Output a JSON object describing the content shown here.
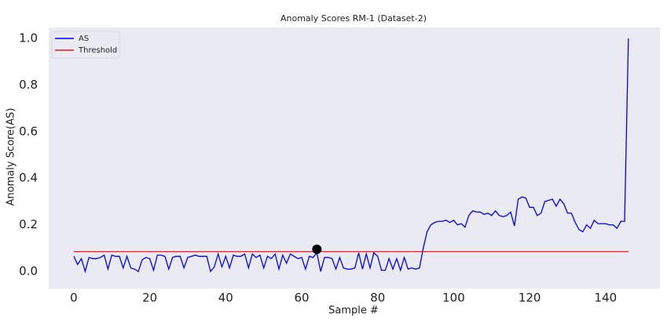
{
  "chart_data": {
    "type": "line",
    "title": "Anomaly Scores RM-1 (Dataset-2)",
    "x_label": "Sample #",
    "y_label": "Anomaly Score(AS)",
    "xlim": [
      -6.6,
      154.3
    ],
    "ylim": [
      -0.074,
      1.047
    ],
    "xticks": [
      0,
      20,
      40,
      60,
      80,
      100,
      120,
      140
    ],
    "yticks": [
      {
        "value": 0,
        "label": "0.0"
      },
      0.2,
      0.4,
      0.6,
      0.8,
      {
        "value": 1,
        "label": "1.0"
      }
    ],
    "grid": false,
    "legend": "upper left",
    "series": [
      {
        "name": "AS",
        "color": "#0000ff",
        "x": [
          0,
          1,
          2,
          3,
          4,
          5,
          6,
          7,
          8,
          9,
          10,
          11,
          12,
          13,
          14,
          15,
          16,
          17,
          18,
          19,
          20,
          21,
          22,
          23,
          24,
          25,
          26,
          27,
          28,
          29,
          30,
          31,
          32,
          33,
          34,
          35,
          36,
          37,
          38,
          39,
          40,
          41,
          42,
          43,
          44,
          45,
          46,
          47,
          48,
          49,
          50,
          51,
          52,
          53,
          54,
          55,
          56,
          57,
          58,
          59,
          60,
          61,
          62,
          63,
          64,
          65,
          66,
          67,
          68,
          69,
          70,
          71,
          72,
          73,
          74,
          75,
          76,
          77,
          78,
          79,
          80,
          81,
          82,
          83,
          84,
          85,
          86,
          87,
          88,
          89,
          90,
          91,
          92,
          93,
          94,
          95,
          96,
          97,
          98,
          99,
          100,
          101,
          102,
          103,
          104,
          105,
          106,
          107,
          108,
          109,
          110,
          111,
          112,
          113,
          114,
          115,
          116,
          117,
          118,
          119,
          120,
          121,
          122,
          123,
          124,
          125,
          126,
          127,
          128,
          129,
          130,
          131,
          132,
          133,
          134,
          135,
          136,
          137,
          138,
          139,
          140,
          141,
          142,
          143,
          144,
          145,
          146
        ],
        "values": [
          0.065,
          0.03,
          0.055,
          0.0,
          0.06,
          0.055,
          0.055,
          0.06,
          0.07,
          0.01,
          0.07,
          0.065,
          0.065,
          0.015,
          0.065,
          0.015,
          0.01,
          0.0,
          0.05,
          0.06,
          0.055,
          0.005,
          0.07,
          0.07,
          0.065,
          0.01,
          0.06,
          0.065,
          0.065,
          0.015,
          0.06,
          0.065,
          0.07,
          0.065,
          0.065,
          0.065,
          0.0,
          0.02,
          0.075,
          0.02,
          0.065,
          0.015,
          0.07,
          0.065,
          0.065,
          0.075,
          0.015,
          0.075,
          0.06,
          0.07,
          0.015,
          0.065,
          0.055,
          0.075,
          0.01,
          0.07,
          0.035,
          0.075,
          0.065,
          0.055,
          0.06,
          0.01,
          0.065,
          0.06,
          0.08,
          0.0,
          0.06,
          0.06,
          0.055,
          0.01,
          0.06,
          0.015,
          0.01,
          0.01,
          0.015,
          0.08,
          0.01,
          0.075,
          0.015,
          0.08,
          0.065,
          0.005,
          0.005,
          0.055,
          0.01,
          0.055,
          0.005,
          0.06,
          0.01,
          0.015,
          0.01,
          0.015,
          0.1,
          0.17,
          0.2,
          0.21,
          0.215,
          0.215,
          0.22,
          0.21,
          0.22,
          0.2,
          0.205,
          0.19,
          0.24,
          0.26,
          0.255,
          0.255,
          0.245,
          0.25,
          0.24,
          0.26,
          0.24,
          0.235,
          0.24,
          0.255,
          0.195,
          0.31,
          0.32,
          0.315,
          0.275,
          0.275,
          0.24,
          0.25,
          0.3,
          0.305,
          0.31,
          0.28,
          0.31,
          0.29,
          0.25,
          0.25,
          0.21,
          0.18,
          0.17,
          0.2,
          0.185,
          0.22,
          0.205,
          0.205,
          0.205,
          0.2,
          0.2,
          0.185,
          0.215,
          0.215,
          1.0
        ]
      },
      {
        "name": "Threshold",
        "color": "#e8141c",
        "x": [
          0,
          146
        ],
        "values": [
          0.085,
          0.085
        ]
      }
    ],
    "marker": {
      "x": 64,
      "y": 0.095,
      "color": "#000000"
    }
  }
}
